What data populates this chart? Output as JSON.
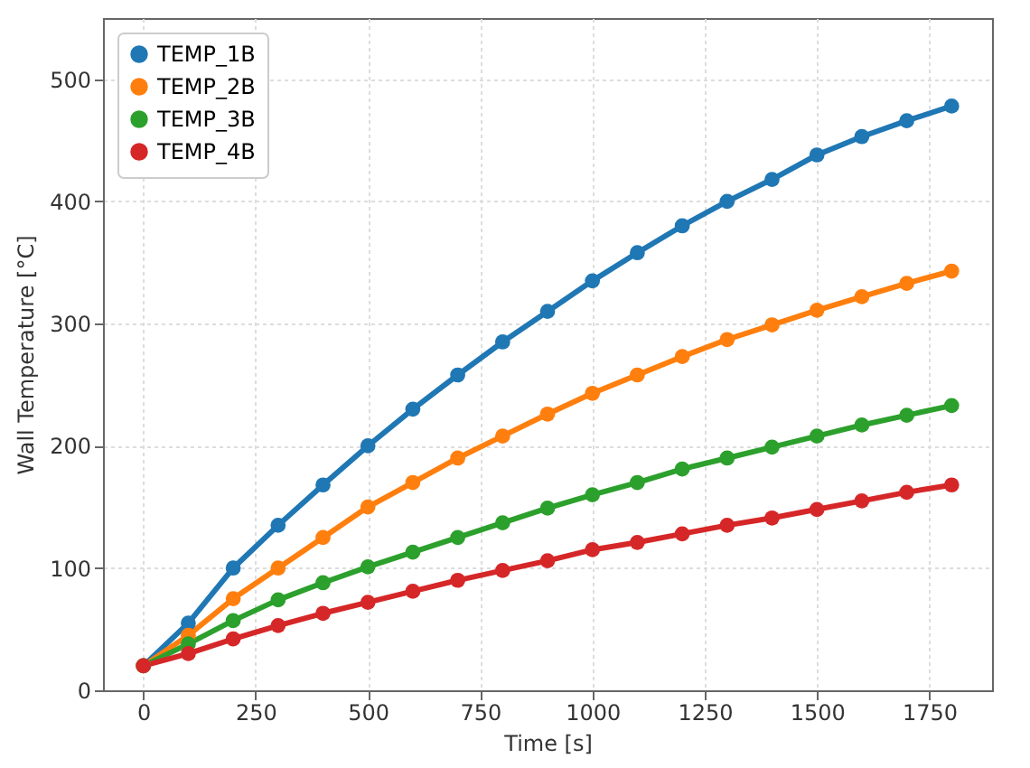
{
  "chart_data": {
    "type": "line",
    "xlabel": "Time [s]",
    "ylabel": "Wall Temperature [°C]",
    "x": [
      0,
      100,
      200,
      300,
      400,
      500,
      600,
      700,
      800,
      900,
      1000,
      1100,
      1200,
      1300,
      1400,
      1500,
      1600,
      1700,
      1800
    ],
    "series": [
      {
        "name": "TEMP_1B",
        "color": "#1f77b4",
        "values": [
          20,
          55,
          100,
          135,
          168,
          200,
          230,
          258,
          285,
          310,
          335,
          358,
          380,
          400,
          418,
          438,
          453,
          466,
          478
        ]
      },
      {
        "name": "TEMP_2B",
        "color": "#ff7f0e",
        "values": [
          20,
          45,
          75,
          100,
          125,
          150,
          170,
          190,
          208,
          226,
          243,
          258,
          273,
          287,
          299,
          311,
          322,
          333,
          343
        ]
      },
      {
        "name": "TEMP_3B",
        "color": "#2ca02c",
        "values": [
          20,
          38,
          57,
          74,
          88,
          101,
          113,
          125,
          137,
          149,
          160,
          170,
          181,
          190,
          199,
          208,
          217,
          225,
          233
        ]
      },
      {
        "name": "TEMP_4B",
        "color": "#d62728",
        "values": [
          20,
          30,
          42,
          53,
          63,
          72,
          81,
          90,
          98,
          106,
          115,
          121,
          128,
          135,
          141,
          148,
          155,
          162,
          168
        ]
      }
    ],
    "xlim": [
      -90,
      1890
    ],
    "xticks": [
      0,
      250,
      500,
      750,
      1000,
      1250,
      1500,
      1750
    ],
    "ylim": [
      0,
      550
    ],
    "yticks": [
      0,
      100,
      200,
      300,
      400,
      500
    ],
    "grid": true,
    "legend": "top left",
    "marker": "circle",
    "line_style": "solid"
  }
}
